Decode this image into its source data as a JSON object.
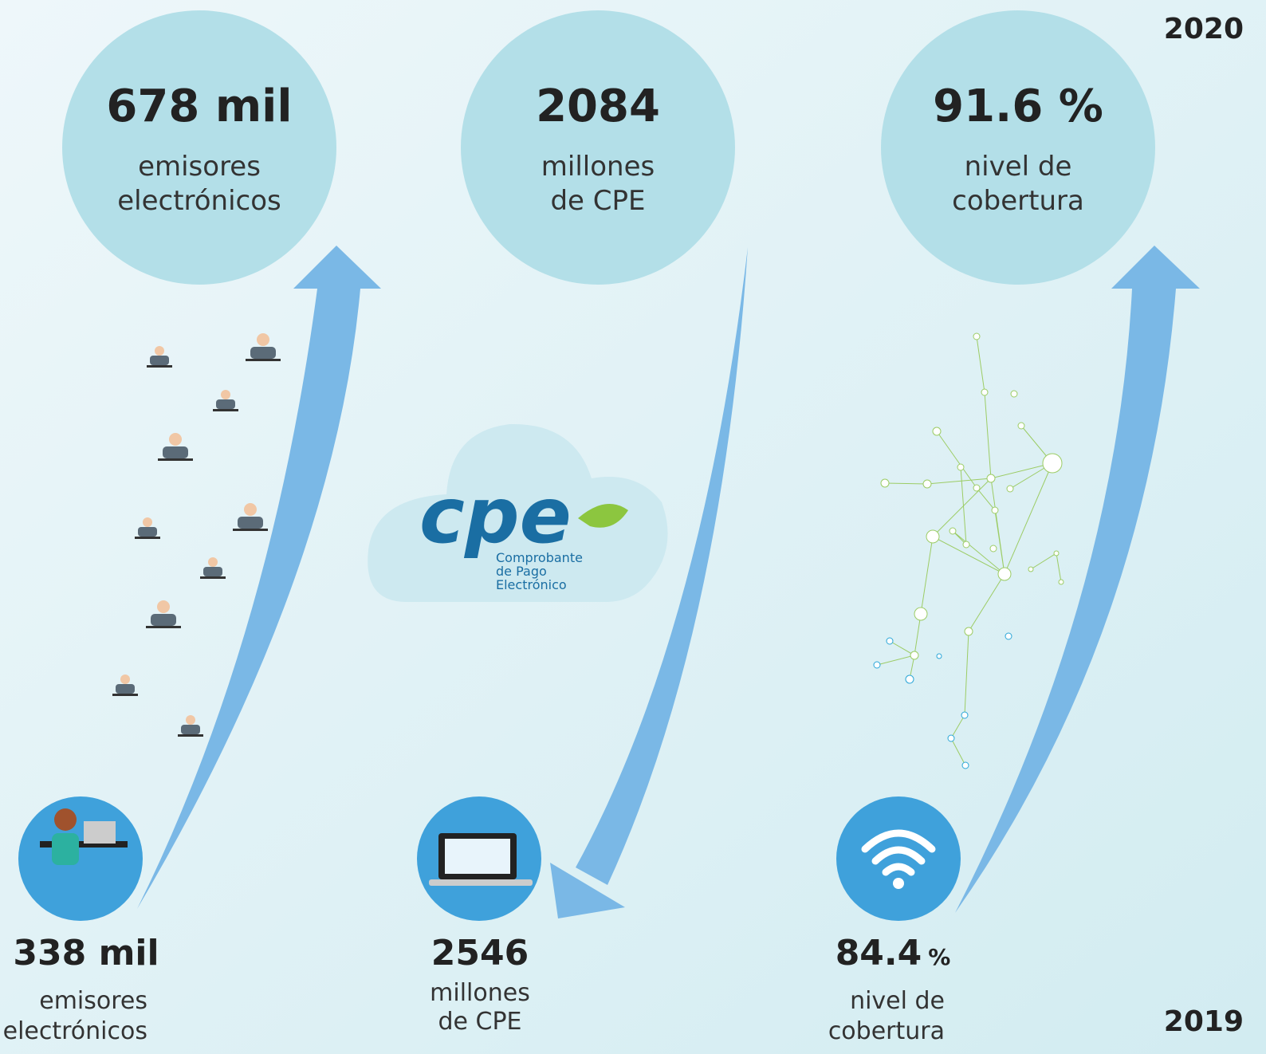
{
  "years": {
    "top": "2020",
    "bottom": "2019"
  },
  "current": [
    {
      "value": "678 mil",
      "label": [
        "emisores",
        "electrónicos"
      ]
    },
    {
      "value": "2084",
      "label": [
        "millones",
        "de CPE"
      ]
    },
    {
      "value": "91.6 %",
      "label": [
        "nivel de",
        "cobertura"
      ]
    }
  ],
  "previous": [
    {
      "value": "338 mil",
      "label": [
        "emisores",
        "electrónicos"
      ]
    },
    {
      "value": "2546",
      "label": [
        "millones",
        "de CPE"
      ]
    },
    {
      "value": "84.4",
      "unit": "%",
      "label": [
        "nivel de",
        "cobertura"
      ]
    }
  ],
  "logo": {
    "mark": "cpe",
    "text": [
      "Comprobante",
      "de Pago",
      "Electrónico"
    ]
  }
}
